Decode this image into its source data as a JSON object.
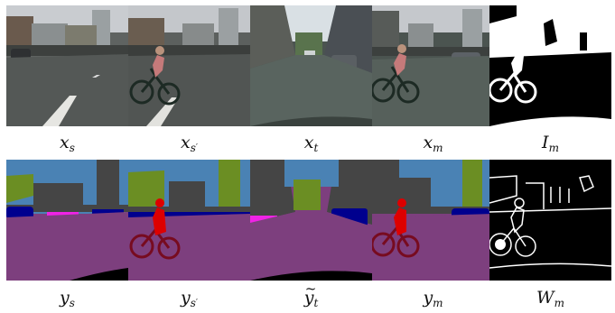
{
  "figure": {
    "rows": [
      {
        "kind": "photo",
        "captions": [
          {
            "base": "x",
            "sub": "s",
            "prime": false,
            "tilde": false
          },
          {
            "base": "x",
            "sub": "s",
            "prime": true,
            "tilde": false
          },
          {
            "base": "x",
            "sub": "t",
            "prime": false,
            "tilde": false
          },
          {
            "base": "x",
            "sub": "m",
            "prime": false,
            "tilde": false
          },
          {
            "base": "I",
            "sub": "m",
            "prime": false,
            "tilde": false
          }
        ]
      },
      {
        "kind": "segmentation",
        "captions": [
          {
            "base": "y",
            "sub": "s",
            "prime": false,
            "tilde": false
          },
          {
            "base": "y",
            "sub": "s",
            "prime": true,
            "tilde": false
          },
          {
            "base": "y",
            "sub": "t",
            "prime": false,
            "tilde": true
          },
          {
            "base": "y",
            "sub": "m",
            "prime": false,
            "tilde": false
          },
          {
            "base": "W",
            "sub": "m",
            "prime": false,
            "tilde": false
          }
        ]
      }
    ],
    "palette": {
      "road": "#7d3f7e",
      "sky": "#4a82b4",
      "building": "#454545",
      "vegetation": "#6b8e23",
      "car": "#00008e",
      "person": "#dd0000",
      "bicycle": "#770b20",
      "sidewalk": "#f023e6"
    }
  }
}
